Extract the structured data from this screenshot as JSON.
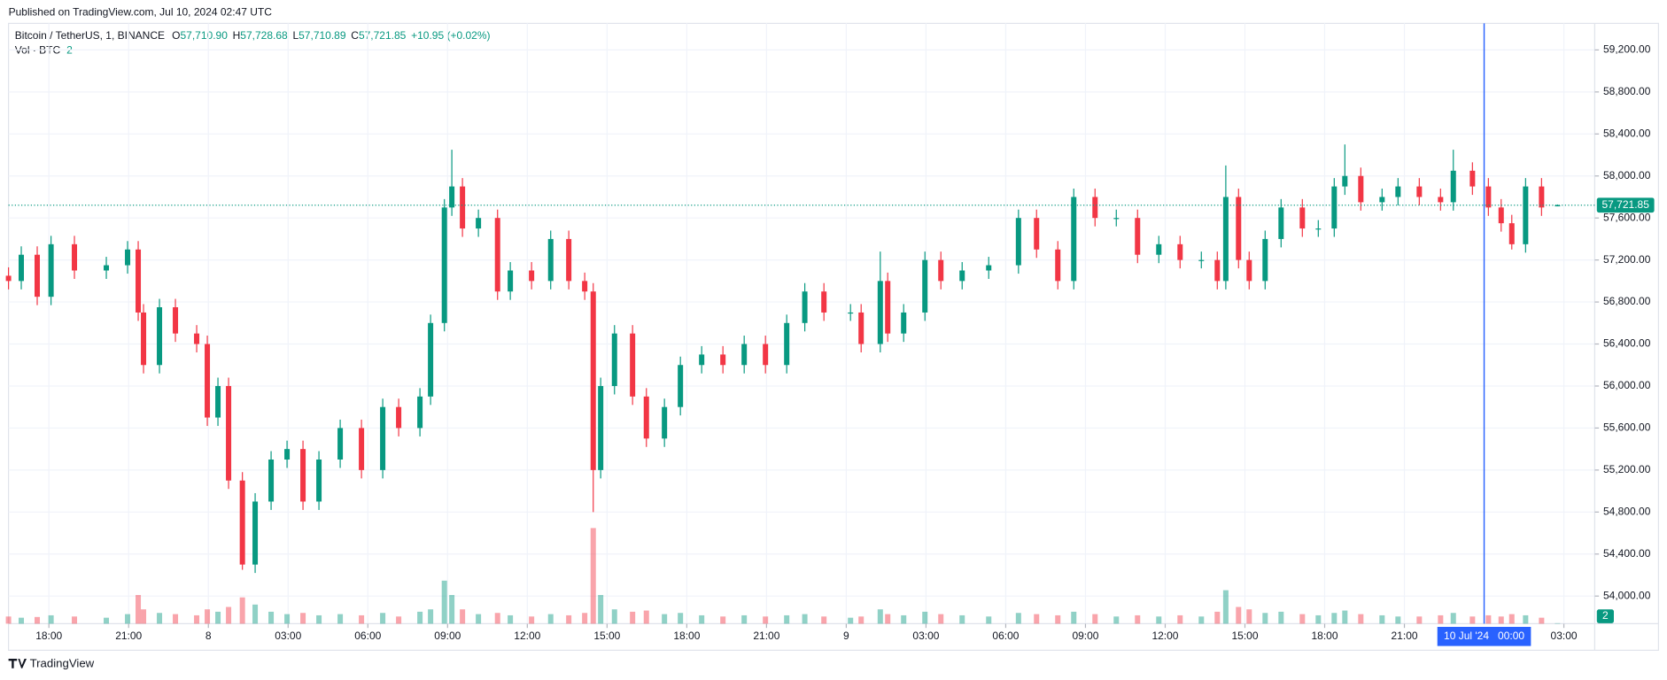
{
  "chart_data": {
    "type": "candlestick",
    "published": "Published on TradingView.com, Jul 10, 2024 02:47 UTC",
    "symbol": "Bitcoin / TetherUS, 1, BINANCE",
    "ohlc_header": [
      {
        "key": "O",
        "value": "57,710.90"
      },
      {
        "key": "H",
        "value": "57,728.68"
      },
      {
        "key": "L",
        "value": "57,710.89"
      },
      {
        "key": "C",
        "value": "57,721.85"
      }
    ],
    "change": "+10.95 (+0.02%)",
    "volume_title": "Vol · BTC",
    "volume_current": "2",
    "footer": "TradingView",
    "up_color": "#089981",
    "down_color": "#f23645",
    "grid": true,
    "x": [
      16.48,
      16.96,
      17.56,
      18.08,
      18.96,
      20.16,
      20.96,
      21.36,
      21.56,
      22.16,
      22.76,
      23.56,
      23.96,
      24.36,
      24.76,
      25.28,
      25.76,
      26.36,
      26.96,
      27.56,
      28.16,
      28.96,
      29.76,
      30.56,
      31.16,
      31.96,
      32.36,
      32.88,
      33.16,
      33.56,
      34.16,
      34.88,
      35.36,
      36.16,
      36.88,
      37.56,
      38.16,
      38.48,
      38.76,
      39.28,
      39.96,
      40.48,
      41.16,
      41.76,
      42.56,
      43.36,
      44.16,
      44.96,
      45.76,
      46.44,
      47.16,
      48.16,
      48.56,
      49.28,
      49.56,
      50.16,
      50.96,
      51.56,
      52.36,
      53.36,
      54.48,
      55.16,
      55.96,
      56.56,
      57.36,
      58.16,
      58.96,
      59.76,
      60.56,
      61.36,
      61.96,
      62.28,
      62.76,
      63.16,
      63.76,
      64.36,
      65.16,
      65.76,
      66.36,
      66.76,
      67.36,
      68.16,
      68.76,
      69.56,
      70.36,
      70.84,
      71.56,
      72.16,
      72.64,
      73.04,
      73.56,
      74.16,
      74.76
    ],
    "open": [
      57050,
      57000,
      57250,
      56850,
      57350,
      57100,
      57150,
      57300,
      56700,
      56200,
      56750,
      56500,
      56400,
      55700,
      56000,
      55100,
      54300,
      54900,
      55300,
      55400,
      54900,
      55300,
      55600,
      55200,
      55800,
      55600,
      55900,
      56600,
      57700,
      57900,
      57500,
      57600,
      56900,
      57100,
      57000,
      57400,
      57000,
      56900,
      55200,
      56000,
      56500,
      55900,
      55500,
      55800,
      56200,
      56300,
      56200,
      56400,
      56200,
      56600,
      56900,
      56700,
      56700,
      56400,
      57000,
      56500,
      56700,
      57200,
      57000,
      57100,
      57150,
      57600,
      57300,
      57000,
      57800,
      57600,
      57600,
      57250,
      57350,
      57200,
      57200,
      57000,
      57800,
      57200,
      57000,
      57400,
      57700,
      57500,
      57500,
      57900,
      58000,
      57750,
      57800,
      57900,
      57800,
      57750,
      58050,
      57900,
      57700,
      57550,
      57350,
      57900,
      57710.9
    ],
    "high": [
      57130,
      57330,
      57330,
      57430,
      57430,
      57230,
      57380,
      57380,
      56780,
      56830,
      56830,
      56580,
      56480,
      56080,
      56080,
      55180,
      54980,
      55380,
      55480,
      55480,
      55380,
      55680,
      55680,
      55880,
      55880,
      55980,
      56680,
      57780,
      58250,
      57980,
      57680,
      57680,
      57180,
      57180,
      57480,
      57480,
      57080,
      56980,
      56080,
      56580,
      56580,
      55980,
      55880,
      56280,
      56380,
      56380,
      56480,
      56480,
      56680,
      56980,
      56980,
      56780,
      56780,
      57280,
      57080,
      56780,
      57280,
      57280,
      57180,
      57230,
      57680,
      57680,
      57380,
      57880,
      57880,
      57680,
      57680,
      57430,
      57430,
      57280,
      57280,
      58100,
      57880,
      57280,
      57480,
      57780,
      57780,
      57580,
      57980,
      58300,
      58080,
      57880,
      57980,
      57980,
      57880,
      58250,
      58130,
      57980,
      57780,
      57630,
      57980,
      57980,
      57728.68
    ],
    "low": [
      56920,
      56920,
      56770,
      56770,
      57020,
      57020,
      57070,
      56620,
      56120,
      56120,
      56420,
      56320,
      55620,
      55620,
      55020,
      54250,
      54220,
      54820,
      55220,
      54820,
      54820,
      55220,
      55120,
      55120,
      55520,
      55520,
      55820,
      56520,
      57620,
      57420,
      57420,
      56820,
      56820,
      56920,
      56920,
      56920,
      56820,
      54800,
      55120,
      55920,
      55820,
      55420,
      55420,
      55720,
      56120,
      56120,
      56120,
      56120,
      56120,
      56520,
      56620,
      56620,
      56320,
      56320,
      56420,
      56420,
      56620,
      56920,
      56920,
      57020,
      57070,
      57220,
      56920,
      56920,
      57520,
      57520,
      57170,
      57170,
      57120,
      57120,
      56920,
      56920,
      57120,
      56920,
      56920,
      57320,
      57420,
      57420,
      57420,
      57820,
      57670,
      57670,
      57720,
      57720,
      57670,
      57670,
      57820,
      57620,
      57470,
      57300,
      57270,
      57620,
      57710.89
    ],
    "close": [
      57000,
      57250,
      56850,
      57350,
      57100,
      57150,
      57300,
      56700,
      56200,
      56750,
      56500,
      56400,
      55700,
      56000,
      55100,
      54300,
      54900,
      55300,
      55400,
      54900,
      55300,
      55600,
      55200,
      55800,
      55600,
      55900,
      56600,
      57700,
      57900,
      57500,
      57600,
      56900,
      57100,
      57000,
      57400,
      57000,
      56900,
      55200,
      56000,
      56500,
      55900,
      55500,
      55800,
      56200,
      56300,
      56200,
      56400,
      56200,
      56600,
      56900,
      56700,
      56700,
      56400,
      57000,
      56500,
      56700,
      57200,
      57000,
      57100,
      57150,
      57600,
      57300,
      57000,
      57800,
      57600,
      57600,
      57250,
      57350,
      57200,
      57200,
      57000,
      57800,
      57200,
      57000,
      57400,
      57700,
      57500,
      57500,
      57900,
      58000,
      57750,
      57800,
      57900,
      57800,
      57750,
      58050,
      57900,
      57700,
      57550,
      57350,
      57900,
      57700,
      57721.85
    ],
    "volume": [
      30,
      25,
      28,
      35,
      30,
      25,
      40,
      120,
      60,
      45,
      40,
      35,
      60,
      50,
      70,
      110,
      80,
      50,
      40,
      45,
      35,
      40,
      35,
      45,
      30,
      50,
      60,
      180,
      120,
      60,
      40,
      45,
      35,
      30,
      40,
      35,
      45,
      400,
      120,
      60,
      50,
      55,
      40,
      45,
      35,
      30,
      35,
      30,
      35,
      40,
      30,
      25,
      30,
      60,
      40,
      35,
      50,
      40,
      35,
      30,
      45,
      40,
      35,
      50,
      40,
      30,
      35,
      30,
      35,
      30,
      50,
      140,
      70,
      60,
      45,
      50,
      40,
      35,
      45,
      55,
      40,
      35,
      30,
      30,
      35,
      45,
      30,
      35,
      30,
      40,
      35,
      25,
      2
    ],
    "xlim": [
      16.48,
      76.16
    ],
    "ylim": [
      53737,
      59453
    ],
    "volume_ylim": [
      0,
      400
    ],
    "xticks": [
      {
        "value": 18,
        "label": "18:00"
      },
      {
        "value": 21,
        "label": "21:00"
      },
      {
        "value": 24,
        "label": "8"
      },
      {
        "value": 27,
        "label": "03:00"
      },
      {
        "value": 30,
        "label": "06:00"
      },
      {
        "value": 33,
        "label": "09:00"
      },
      {
        "value": 36,
        "label": "12:00"
      },
      {
        "value": 39,
        "label": "15:00"
      },
      {
        "value": 42,
        "label": "18:00"
      },
      {
        "value": 45,
        "label": "21:00"
      },
      {
        "value": 48,
        "label": "9"
      },
      {
        "value": 51,
        "label": "03:00"
      },
      {
        "value": 54,
        "label": "06:00"
      },
      {
        "value": 57,
        "label": "09:00"
      },
      {
        "value": 60,
        "label": "12:00"
      },
      {
        "value": 63,
        "label": "15:00"
      },
      {
        "value": 66,
        "label": "18:00"
      },
      {
        "value": 69,
        "label": "21:00"
      },
      {
        "value": 75,
        "label": "03:00"
      }
    ],
    "yticks": [
      {
        "value": 54000,
        "label": "54,000.00"
      },
      {
        "value": 54400,
        "label": "54,400.00"
      },
      {
        "value": 54800,
        "label": "54,800.00"
      },
      {
        "value": 55200,
        "label": "55,200.00"
      },
      {
        "value": 55600,
        "label": "55,600.00"
      },
      {
        "value": 56000,
        "label": "56,000.00"
      },
      {
        "value": 56400,
        "label": "56,400.00"
      },
      {
        "value": 56800,
        "label": "56,800.00"
      },
      {
        "value": 57200,
        "label": "57,200.00"
      },
      {
        "value": 57600,
        "label": "57,600.00"
      },
      {
        "value": 58000,
        "label": "58,000.00"
      },
      {
        "value": 58400,
        "label": "58,400.00"
      },
      {
        "value": 58800,
        "label": "58,800.00"
      },
      {
        "value": 59200,
        "label": "59,200.00"
      }
    ],
    "last_price": {
      "value": 57721.85,
      "label": "57,721.85"
    },
    "crosshair": {
      "value": 72,
      "label": "10 Jul '24   00:00"
    }
  }
}
